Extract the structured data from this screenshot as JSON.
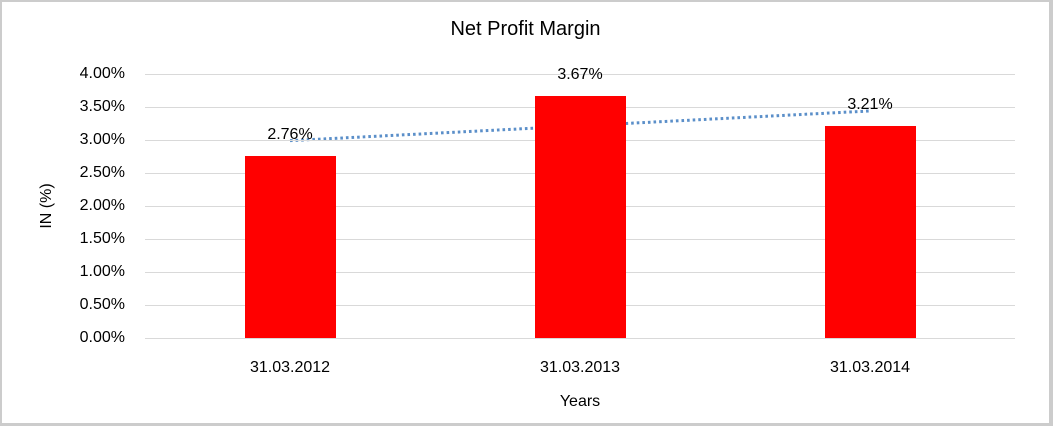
{
  "chart_data": {
    "type": "bar",
    "title": "Net Profit Margin",
    "xlabel": "Years",
    "ylabel": "IN (%)",
    "categories": [
      "31.03.2012",
      "31.03.2013",
      "31.03.2014"
    ],
    "series": [
      {
        "name": "Net Profit Margin",
        "values": [
          2.76,
          3.67,
          3.21
        ]
      }
    ],
    "data_labels": [
      "2.76%",
      "3.67%",
      "3.21%"
    ],
    "ylim": [
      0,
      4
    ],
    "ytick_step": 0.5,
    "ytick_labels": [
      "0.00%",
      "0.50%",
      "1.00%",
      "1.50%",
      "2.00%",
      "2.50%",
      "3.00%",
      "3.50%",
      "4.00%"
    ],
    "grid": true,
    "legend": "none",
    "bar_color": "#FF0000",
    "gridline_color": "#D9D9D9",
    "border_color": "#CCCCCC",
    "trendline": {
      "type": "linear",
      "style": "dotted",
      "color": "#5B8FC9",
      "start_value": 2.99,
      "end_value": 3.44
    }
  }
}
